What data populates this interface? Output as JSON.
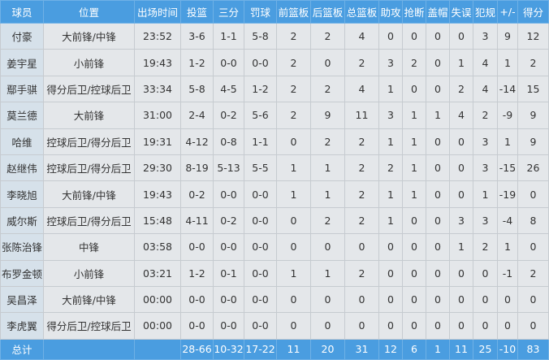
{
  "headers": [
    "球员",
    "位置",
    "出场时间",
    "投篮",
    "三分",
    "罚球",
    "前篮板",
    "后篮板",
    "总篮板",
    "助攻",
    "抢断",
    "盖帽",
    "失误",
    "犯规",
    "+/-",
    "得分"
  ],
  "rows": [
    [
      "付豪",
      "大前锋/中锋",
      "23:52",
      "3-6",
      "1-1",
      "5-8",
      "2",
      "2",
      "4",
      "0",
      "0",
      "0",
      "0",
      "3",
      "9",
      "12"
    ],
    [
      "姜宇星",
      "小前锋",
      "19:43",
      "1-2",
      "0-0",
      "0-0",
      "2",
      "0",
      "2",
      "3",
      "2",
      "0",
      "1",
      "4",
      "1",
      "2"
    ],
    [
      "鄢手骐",
      "得分后卫/控球后卫",
      "33:34",
      "5-8",
      "4-5",
      "1-2",
      "2",
      "2",
      "4",
      "1",
      "0",
      "0",
      "2",
      "4",
      "-14",
      "15"
    ],
    [
      "莫兰德",
      "大前锋",
      "31:00",
      "2-4",
      "0-2",
      "5-6",
      "2",
      "9",
      "11",
      "3",
      "1",
      "1",
      "4",
      "2",
      "-9",
      "9"
    ],
    [
      "哈维",
      "控球后卫/得分后卫",
      "19:31",
      "4-12",
      "0-8",
      "1-1",
      "0",
      "2",
      "2",
      "1",
      "1",
      "0",
      "0",
      "3",
      "1",
      "9"
    ],
    [
      "赵继伟",
      "控球后卫/得分后卫",
      "29:30",
      "8-19",
      "5-13",
      "5-5",
      "1",
      "1",
      "2",
      "2",
      "1",
      "0",
      "0",
      "3",
      "-15",
      "26"
    ],
    [
      "李晓旭",
      "大前锋/中锋",
      "19:43",
      "0-2",
      "0-0",
      "0-0",
      "1",
      "1",
      "2",
      "1",
      "1",
      "0",
      "0",
      "1",
      "-19",
      "0"
    ],
    [
      "威尔斯",
      "控球后卫/得分后卫",
      "15:48",
      "4-11",
      "0-2",
      "0-0",
      "0",
      "2",
      "2",
      "1",
      "0",
      "0",
      "3",
      "3",
      "-4",
      "8"
    ],
    [
      "张陈治锋",
      "中锋",
      "03:58",
      "0-0",
      "0-0",
      "0-0",
      "0",
      "0",
      "0",
      "0",
      "0",
      "0",
      "1",
      "2",
      "1",
      "0"
    ],
    [
      "布罗金顿",
      "小前锋",
      "03:21",
      "1-2",
      "0-1",
      "0-0",
      "1",
      "1",
      "2",
      "0",
      "0",
      "0",
      "0",
      "0",
      "-1",
      "2"
    ],
    [
      "吴昌泽",
      "大前锋/中锋",
      "00:00",
      "0-0",
      "0-0",
      "0-0",
      "0",
      "0",
      "0",
      "0",
      "0",
      "0",
      "0",
      "0",
      "0",
      "0"
    ],
    [
      "李虎翼",
      "得分后卫/控球后卫",
      "00:00",
      "0-0",
      "0-0",
      "0-0",
      "0",
      "0",
      "0",
      "0",
      "0",
      "0",
      "0",
      "0",
      "0",
      "0"
    ]
  ],
  "total": [
    "总计",
    "",
    "",
    "28-66",
    "10-32",
    "17-22",
    "11",
    "20",
    "31",
    "12",
    "6",
    "1",
    "11",
    "25",
    "-10",
    "83"
  ]
}
